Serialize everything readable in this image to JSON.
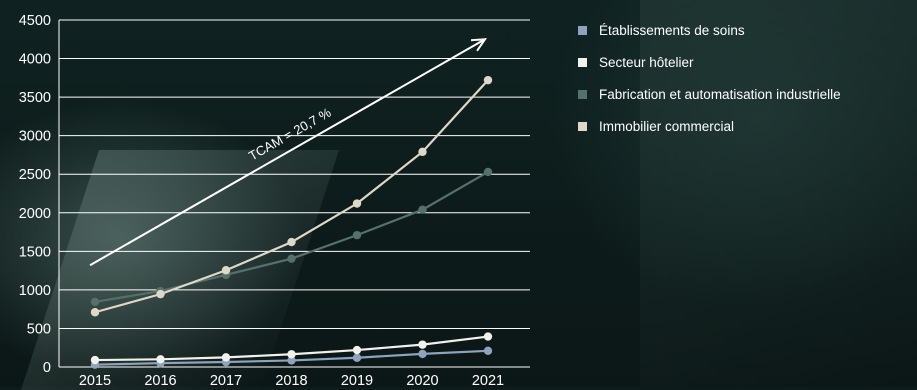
{
  "chart_data": {
    "type": "line",
    "x": [
      "2015",
      "2016",
      "2017",
      "2018",
      "2019",
      "2020",
      "2021"
    ],
    "ylim": [
      0,
      4500
    ],
    "yticks": [
      0,
      500,
      1000,
      1500,
      2000,
      2500,
      3000,
      3500,
      4000,
      4500
    ],
    "grid": true,
    "legend_position": "right",
    "series": [
      {
        "name": "Établissements de soins",
        "color": "#8fa3bd",
        "values": [
          30,
          50,
          65,
          85,
          120,
          170,
          210
        ]
      },
      {
        "name": "Secteur hôtelier",
        "color": "#f2f2ec",
        "values": [
          90,
          100,
          125,
          165,
          220,
          290,
          395
        ]
      },
      {
        "name": "Fabrication et automatisation industrielle",
        "color": "#56706a",
        "values": [
          845,
          985,
          1195,
          1405,
          1710,
          2040,
          2530
        ]
      },
      {
        "name": "Immobilier commercial",
        "color": "#ddd8c8",
        "values": [
          710,
          945,
          1255,
          1620,
          2120,
          2790,
          3720
        ]
      }
    ],
    "annotation": {
      "text": "TCAM = 20,7 %",
      "from": [
        "2015",
        1320
      ],
      "to": [
        "2021",
        4250
      ]
    }
  }
}
